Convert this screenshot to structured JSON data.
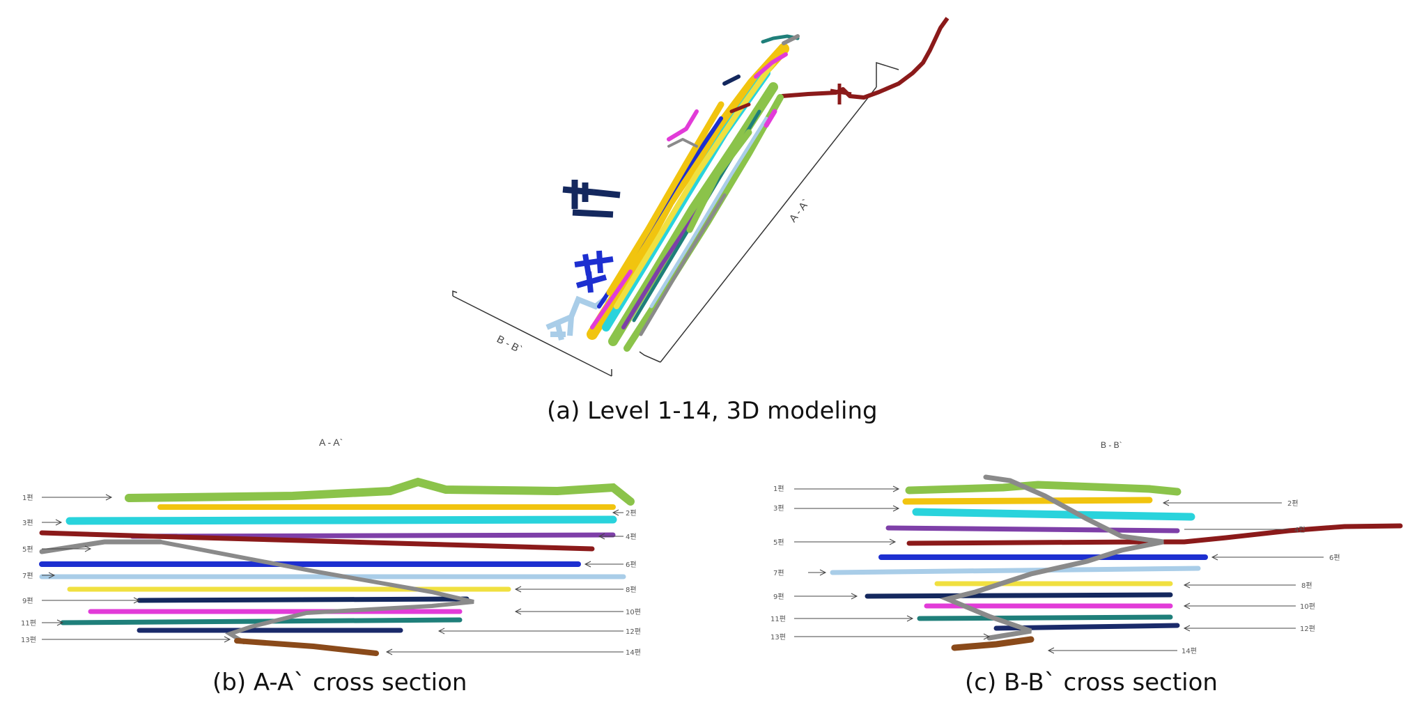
{
  "captions": {
    "a": "(a) Level 1-14, 3D modeling",
    "b": "(b) A-A` cross section",
    "c": "(c) B-B` cross section"
  },
  "model": {
    "aa_label": "A - A`",
    "bb_label": "B - B`"
  },
  "section_aa": {
    "title": "A - A`",
    "left_labels": [
      "1편",
      "3편",
      "5편",
      "7편",
      "9편",
      "11편",
      "13편"
    ],
    "right_labels": [
      "2편",
      "4편",
      "6편",
      "8편",
      "10편",
      "12편",
      "14편"
    ]
  },
  "section_bb": {
    "title": "B - B`",
    "left_labels": [
      "1편",
      "3편",
      "5편",
      "7편",
      "9편",
      "11편",
      "13편"
    ],
    "right_labels": [
      "2편",
      "4편",
      "6편",
      "8편",
      "10편",
      "12편",
      "14편"
    ]
  },
  "level_colors": {
    "1": "#8bc34a",
    "2": "#f1c40f",
    "3": "#29d3dc",
    "4": "#7e3fa8",
    "5": "#8b1a1a",
    "6": "#1d2fd0",
    "7": "#a9cde8",
    "8": "#f0e040",
    "9": "#14285e",
    "10": "#e23bd8",
    "11": "#1f7f7a",
    "12": "#1a2a6a",
    "13": "#8a8a8a",
    "14": "#8a4a1a"
  }
}
